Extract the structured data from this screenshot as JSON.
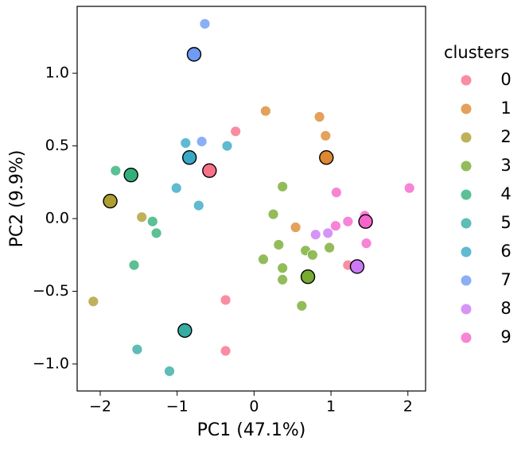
{
  "chart_data": {
    "type": "scatter",
    "x_label": "PC1 (47.1%)",
    "y_label": "PC2 (9.9%)",
    "legend_title": "clusters",
    "xlim": [
      -2.3,
      2.23
    ],
    "ylim": [
      -1.186,
      1.46
    ],
    "xticks": [
      {
        "value": -2,
        "label": "−2"
      },
      {
        "value": -1,
        "label": "−1"
      },
      0,
      1,
      2
    ],
    "yticks": [
      {
        "value": -1.0,
        "label": "−1.0"
      },
      {
        "value": -0.5,
        "label": "−0.5"
      },
      {
        "value": 0.0,
        "label": "0.0"
      },
      {
        "value": 0.5,
        "label": "0.5"
      },
      {
        "value": 1.0,
        "label": "1.0"
      }
    ],
    "series": [
      {
        "name": "0",
        "color": "#f77189",
        "x": [
          -0.24,
          -0.37,
          -0.37,
          1.22
        ],
        "values": [
          0.6,
          -0.56,
          -0.91,
          -0.32
        ],
        "centroid": {
          "x": -0.58,
          "y": 0.33
        }
      },
      {
        "name": "1",
        "color": "#dc8932",
        "x": [
          0.15,
          0.85,
          0.93,
          0.54
        ],
        "values": [
          0.74,
          0.7,
          0.57,
          -0.06
        ],
        "centroid": {
          "x": 0.94,
          "y": 0.42
        }
      },
      {
        "name": "2",
        "color": "#ae9d31",
        "x": [
          -2.09,
          -1.46
        ],
        "values": [
          -0.57,
          0.01
        ],
        "centroid": {
          "x": -1.87,
          "y": 0.12
        }
      },
      {
        "name": "3",
        "color": "#77ab31",
        "x": [
          0.37,
          0.25,
          0.32,
          0.12,
          0.37,
          0.37,
          0.67,
          0.76,
          0.98,
          0.62
        ],
        "values": [
          0.22,
          0.03,
          -0.18,
          -0.28,
          -0.34,
          -0.42,
          -0.22,
          -0.25,
          -0.2,
          -0.6
        ],
        "centroid": {
          "x": 0.7,
          "y": -0.4
        }
      },
      {
        "name": "4",
        "color": "#33b07a",
        "x": [
          -1.8,
          -1.32,
          -1.27,
          -1.56
        ],
        "values": [
          0.33,
          -0.02,
          -0.1,
          -0.32
        ],
        "centroid": {
          "x": -1.6,
          "y": 0.3
        }
      },
      {
        "name": "5",
        "color": "#36ada4",
        "x": [
          -1.52,
          -1.1
        ],
        "values": [
          -0.9,
          -1.05
        ],
        "centroid": {
          "x": -0.9,
          "y": -0.77
        }
      },
      {
        "name": "6",
        "color": "#38a9c5",
        "x": [
          -0.89,
          -0.35,
          -1.01,
          -0.72
        ],
        "values": [
          0.52,
          0.5,
          0.21,
          0.09
        ],
        "centroid": {
          "x": -0.84,
          "y": 0.42
        }
      },
      {
        "name": "7",
        "color": "#6e9bf4",
        "x": [
          -0.64,
          -0.68
        ],
        "values": [
          1.34,
          0.53
        ],
        "centroid": {
          "x": -0.78,
          "y": 1.13
        }
      },
      {
        "name": "8",
        "color": "#cc7af4",
        "x": [
          0.8,
          0.96
        ],
        "values": [
          -0.11,
          -0.1
        ],
        "centroid": {
          "x": 1.34,
          "y": -0.33
        }
      },
      {
        "name": "9",
        "color": "#f565cc",
        "x": [
          1.07,
          2.02,
          1.06,
          1.22,
          1.44,
          1.46
        ],
        "values": [
          0.18,
          0.21,
          -0.05,
          -0.02,
          0.02,
          -0.17
        ],
        "centroid": {
          "x": 1.45,
          "y": -0.02
        }
      }
    ]
  }
}
